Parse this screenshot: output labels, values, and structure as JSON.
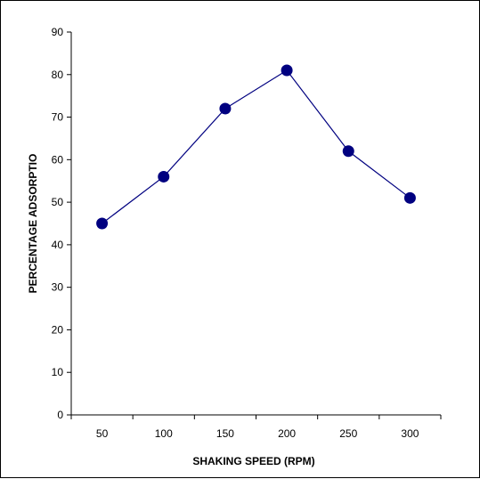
{
  "chart_data": {
    "type": "line",
    "title": "",
    "xlabel": "SHAKING SPEED (RPM)",
    "ylabel": "PERCENTAGE ADSORPTIO",
    "x": [
      50,
      100,
      150,
      200,
      250,
      300
    ],
    "y_ticks": [
      "0",
      "10",
      "20",
      "30",
      "40",
      "50",
      "60",
      "70",
      "80",
      "90"
    ],
    "x_ticks": [
      "50",
      "100",
      "150",
      "200",
      "250",
      "300"
    ],
    "ylim": [
      0,
      90
    ],
    "series": [
      {
        "values": [
          45,
          56,
          72,
          81,
          62,
          51
        ],
        "color": "#000080",
        "marker": "circle"
      }
    ],
    "grid": false,
    "legend": "none"
  }
}
